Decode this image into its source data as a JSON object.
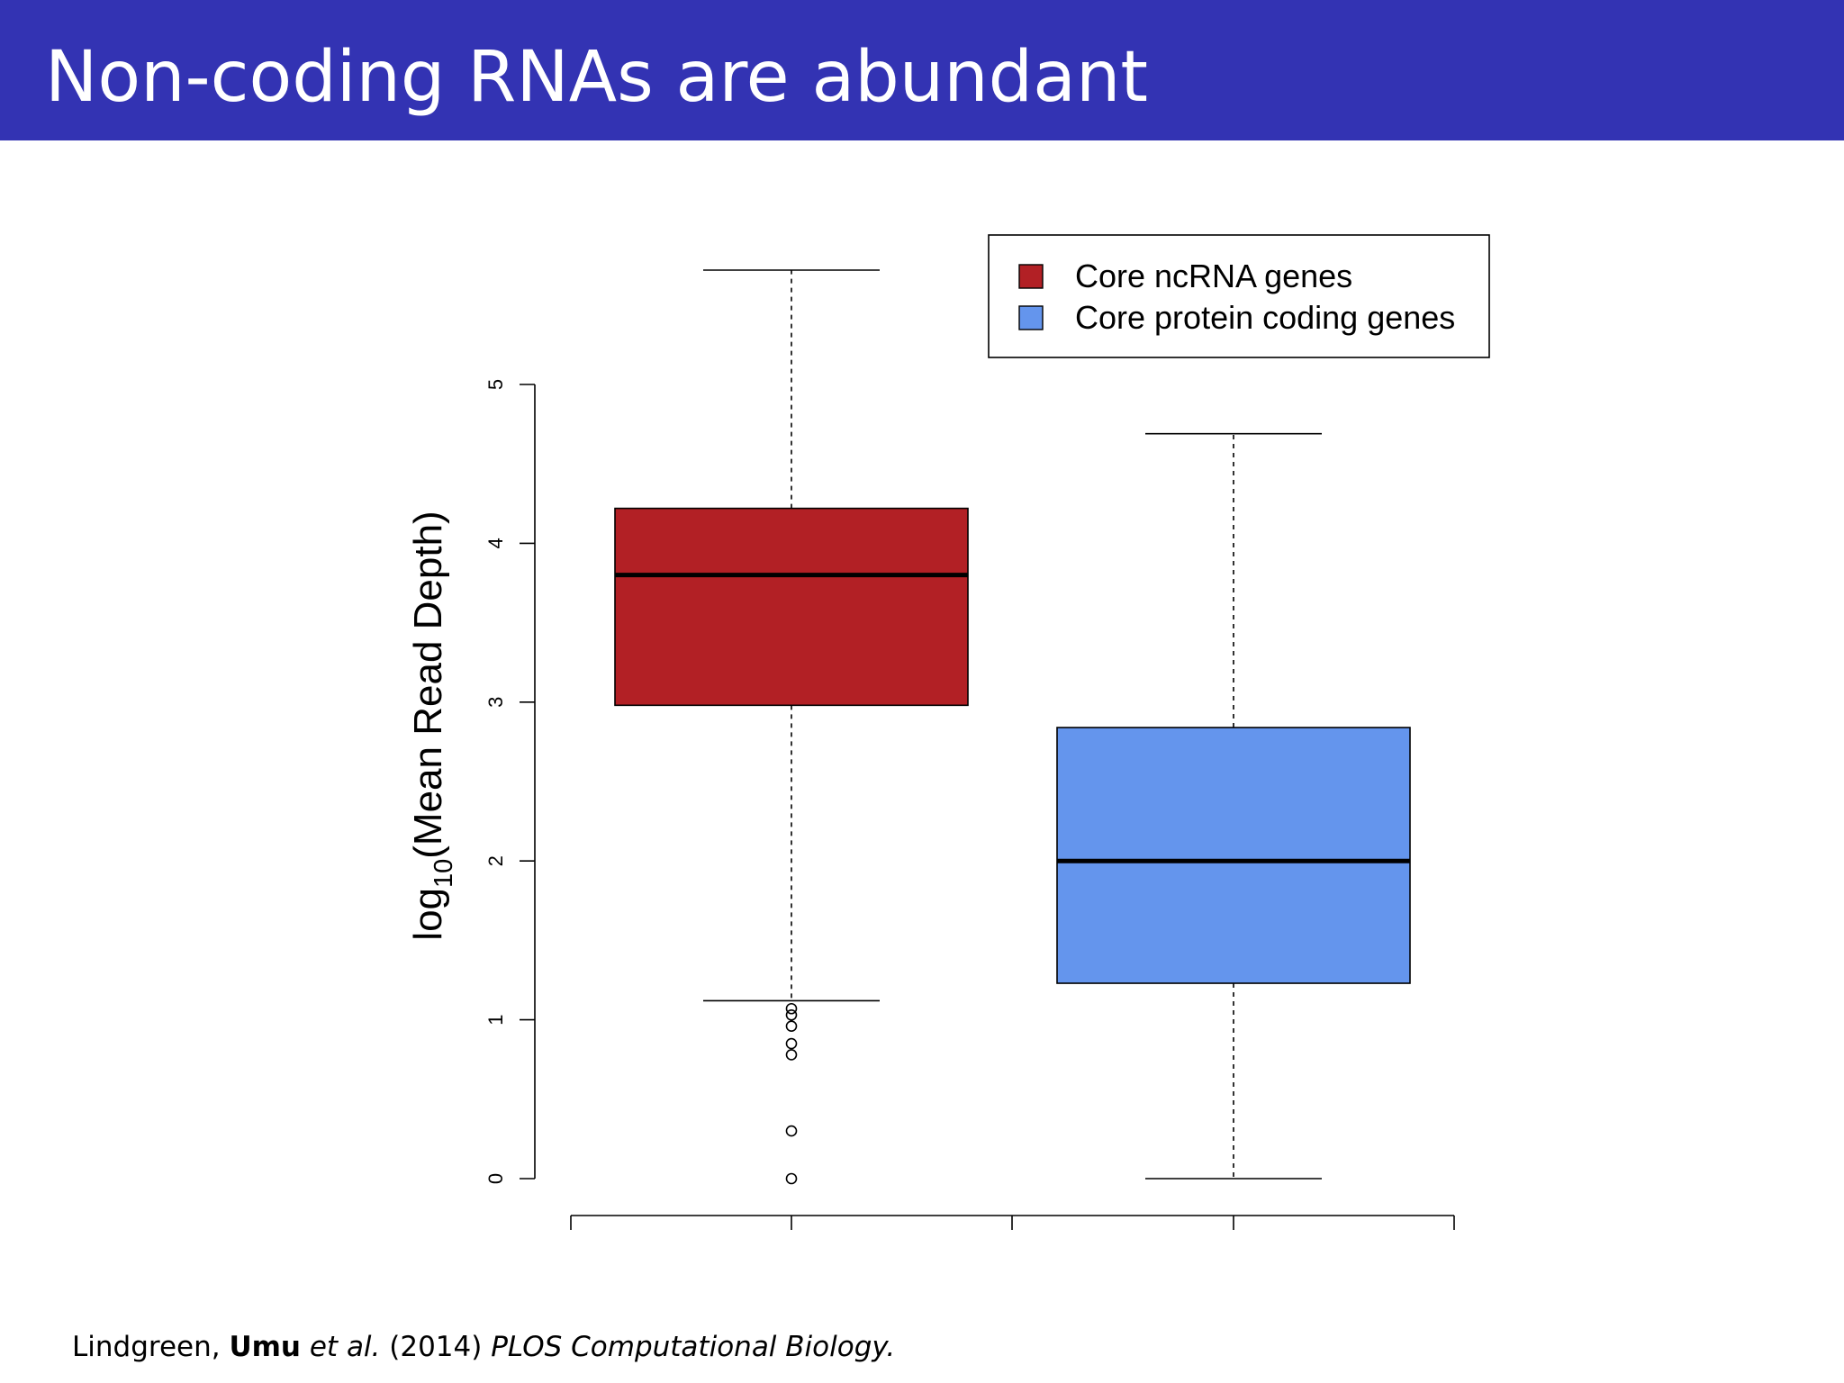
{
  "slide": {
    "title": "Non-coding RNAs are abundant",
    "citation": {
      "authors_prefix": "Lindgreen, ",
      "authors_bold": "Umu",
      "et_al": "et al.",
      "year": " (2014) ",
      "journal": "PLOS Computational Biology."
    }
  },
  "colors": {
    "header": "#3333b3",
    "ncrna": "#b22025",
    "protein": "#6495ed"
  },
  "chart_data": {
    "type": "boxplot",
    "title": "",
    "ylabel_main": "log",
    "ylabel_sub": "10",
    "ylabel_rest": "(Mean Read Depth)",
    "xlabel": "",
    "ylim": [
      0,
      5
    ],
    "y_ticks": [
      "0",
      "1",
      "2",
      "3",
      "4",
      "5"
    ],
    "legend_position": "top-right",
    "grid": false,
    "series": [
      {
        "name": "Core ncRNA genes",
        "color": "#b22025",
        "whisker_low": 1.12,
        "q1": 2.98,
        "median": 3.8,
        "q3": 4.22,
        "whisker_high": 5.72,
        "outliers": [
          1.07,
          1.03,
          0.96,
          0.85,
          0.78,
          0.3,
          0.0
        ]
      },
      {
        "name": "Core protein coding genes",
        "color": "#6495ed",
        "whisker_low": 0.0,
        "q1": 1.23,
        "median": 2.0,
        "q3": 2.84,
        "whisker_high": 4.69,
        "outliers": []
      }
    ]
  }
}
